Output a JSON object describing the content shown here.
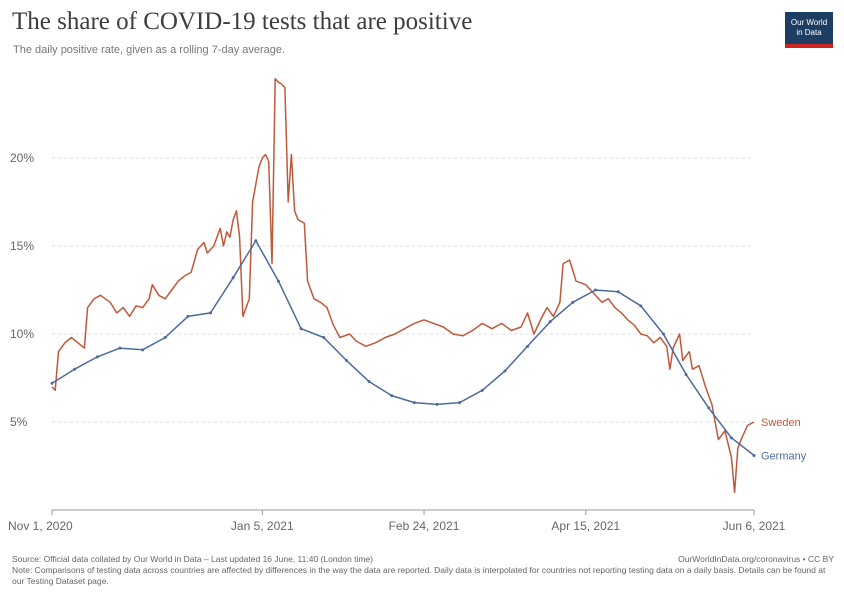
{
  "header": {
    "title": "The share of COVID-19 tests that are positive",
    "subtitle": "The daily positive rate, given as a rolling 7-day average.",
    "logo_line1": "Our World",
    "logo_line2": "in Data"
  },
  "footer": {
    "source": "Source: Official data collated by Our World in Data – Last updated 16 June, 11:40 (London time)",
    "url": "OurWorldInData.org/coronavirus • CC BY",
    "note": "Note: Comparisons of testing data across countries are affected by differences in the way the data are reported. Daily data is interpolated for countries not reporting testing data on a daily basis. Details can be found at our Testing Dataset page."
  },
  "colors": {
    "sweden": "#c0583a",
    "germany": "#4c6a9c"
  },
  "chart_data": {
    "type": "line",
    "title": "The share of COVID-19 tests that are positive",
    "subtitle": "The daily positive rate, given as a rolling 7-day average.",
    "xlabel": "",
    "ylabel": "",
    "x_ticks": [
      "Nov 1, 2020",
      "Jan 5, 2021",
      "Feb 24, 2021",
      "Apr 15, 2021",
      "Jun 6, 2021"
    ],
    "y_ticks": [
      "5%",
      "10%",
      "15%",
      "20%"
    ],
    "ylim": [
      0,
      25
    ],
    "grid": true,
    "legend": "inline-right",
    "series": [
      {
        "name": "Sweden",
        "color": "#c0583a",
        "points": [
          [
            "2020-11-01",
            7.0
          ],
          [
            "2020-11-02",
            6.8
          ],
          [
            "2020-11-03",
            9.0
          ],
          [
            "2020-11-05",
            9.5
          ],
          [
            "2020-11-07",
            9.8
          ],
          [
            "2020-11-09",
            9.5
          ],
          [
            "2020-11-11",
            9.2
          ],
          [
            "2020-11-12",
            11.5
          ],
          [
            "2020-11-14",
            12.0
          ],
          [
            "2020-11-16",
            12.2
          ],
          [
            "2020-11-19",
            11.8
          ],
          [
            "2020-11-21",
            11.2
          ],
          [
            "2020-11-23",
            11.5
          ],
          [
            "2020-11-25",
            11.0
          ],
          [
            "2020-11-27",
            11.6
          ],
          [
            "2020-11-29",
            11.5
          ],
          [
            "2020-12-01",
            12.0
          ],
          [
            "2020-12-02",
            12.8
          ],
          [
            "2020-12-04",
            12.2
          ],
          [
            "2020-12-06",
            12.0
          ],
          [
            "2020-12-08",
            12.5
          ],
          [
            "2020-12-10",
            13.0
          ],
          [
            "2020-12-12",
            13.3
          ],
          [
            "2020-12-14",
            13.5
          ],
          [
            "2020-12-16",
            14.8
          ],
          [
            "2020-12-18",
            15.2
          ],
          [
            "2020-12-19",
            14.6
          ],
          [
            "2020-12-21",
            15.0
          ],
          [
            "2020-12-23",
            16.0
          ],
          [
            "2020-12-24",
            15.0
          ],
          [
            "2020-12-25",
            15.8
          ],
          [
            "2020-12-26",
            15.5
          ],
          [
            "2020-12-27",
            16.5
          ],
          [
            "2020-12-28",
            17.0
          ],
          [
            "2020-12-29",
            15.5
          ],
          [
            "2020-12-30",
            11.0
          ],
          [
            "2020-12-31",
            11.5
          ],
          [
            "2021-01-01",
            12.0
          ],
          [
            "2021-01-02",
            17.5
          ],
          [
            "2021-01-03",
            18.5
          ],
          [
            "2021-01-04",
            19.5
          ],
          [
            "2021-01-05",
            20.0
          ],
          [
            "2021-01-06",
            20.2
          ],
          [
            "2021-01-07",
            19.8
          ],
          [
            "2021-01-08",
            14.0
          ],
          [
            "2021-01-09",
            24.5
          ],
          [
            "2021-01-10",
            24.3
          ],
          [
            "2021-01-11",
            24.2
          ],
          [
            "2021-01-12",
            24.0
          ],
          [
            "2021-01-13",
            17.5
          ],
          [
            "2021-01-14",
            20.2
          ],
          [
            "2021-01-15",
            17.0
          ],
          [
            "2021-01-16",
            16.5
          ],
          [
            "2021-01-18",
            16.3
          ],
          [
            "2021-01-19",
            13.0
          ],
          [
            "2021-01-21",
            12.0
          ],
          [
            "2021-01-23",
            11.8
          ],
          [
            "2021-01-25",
            11.5
          ],
          [
            "2021-01-27",
            10.5
          ],
          [
            "2021-01-29",
            9.8
          ],
          [
            "2021-02-01",
            10.0
          ],
          [
            "2021-02-03",
            9.6
          ],
          [
            "2021-02-06",
            9.3
          ],
          [
            "2021-02-09",
            9.5
          ],
          [
            "2021-02-12",
            9.8
          ],
          [
            "2021-02-15",
            10.0
          ],
          [
            "2021-02-18",
            10.3
          ],
          [
            "2021-02-21",
            10.6
          ],
          [
            "2021-02-24",
            10.8
          ],
          [
            "2021-02-27",
            10.6
          ],
          [
            "2021-03-02",
            10.4
          ],
          [
            "2021-03-05",
            10.0
          ],
          [
            "2021-03-08",
            9.9
          ],
          [
            "2021-03-11",
            10.2
          ],
          [
            "2021-03-14",
            10.6
          ],
          [
            "2021-03-17",
            10.3
          ],
          [
            "2021-03-20",
            10.6
          ],
          [
            "2021-03-23",
            10.2
          ],
          [
            "2021-03-26",
            10.4
          ],
          [
            "2021-03-28",
            11.2
          ],
          [
            "2021-03-30",
            10.0
          ],
          [
            "2021-04-01",
            10.8
          ],
          [
            "2021-04-03",
            11.5
          ],
          [
            "2021-04-05",
            11.0
          ],
          [
            "2021-04-07",
            11.8
          ],
          [
            "2021-04-08",
            14.0
          ],
          [
            "2021-04-10",
            14.2
          ],
          [
            "2021-04-12",
            13.0
          ],
          [
            "2021-04-15",
            12.8
          ],
          [
            "2021-04-18",
            12.2
          ],
          [
            "2021-04-20",
            11.8
          ],
          [
            "2021-04-22",
            12.0
          ],
          [
            "2021-04-24",
            11.5
          ],
          [
            "2021-04-26",
            11.2
          ],
          [
            "2021-04-28",
            10.8
          ],
          [
            "2021-04-30",
            10.5
          ],
          [
            "2021-05-02",
            10.0
          ],
          [
            "2021-05-04",
            9.9
          ],
          [
            "2021-05-06",
            9.5
          ],
          [
            "2021-05-08",
            9.8
          ],
          [
            "2021-05-10",
            9.3
          ],
          [
            "2021-05-11",
            8.0
          ],
          [
            "2021-05-12",
            9.2
          ],
          [
            "2021-05-14",
            10.0
          ],
          [
            "2021-05-15",
            8.5
          ],
          [
            "2021-05-17",
            9.0
          ],
          [
            "2021-05-18",
            8.0
          ],
          [
            "2021-05-20",
            8.2
          ],
          [
            "2021-05-22",
            7.0
          ],
          [
            "2021-05-24",
            6.0
          ],
          [
            "2021-05-26",
            4.0
          ],
          [
            "2021-05-28",
            4.5
          ],
          [
            "2021-05-30",
            3.0
          ],
          [
            "2021-05-31",
            1.0
          ],
          [
            "2021-06-01",
            3.5
          ],
          [
            "2021-06-02",
            4.0
          ],
          [
            "2021-06-04",
            4.8
          ],
          [
            "2021-06-06",
            5.0
          ]
        ]
      },
      {
        "name": "Germany",
        "color": "#4c6a9c",
        "points": [
          [
            "2020-11-01",
            7.2
          ],
          [
            "2020-11-08",
            8.0
          ],
          [
            "2020-11-15",
            8.7
          ],
          [
            "2020-11-22",
            9.2
          ],
          [
            "2020-11-29",
            9.1
          ],
          [
            "2020-12-06",
            9.8
          ],
          [
            "2020-12-13",
            11.0
          ],
          [
            "2020-12-20",
            11.2
          ],
          [
            "2020-12-27",
            13.2
          ],
          [
            "2021-01-03",
            15.3
          ],
          [
            "2021-01-10",
            13.0
          ],
          [
            "2021-01-17",
            10.3
          ],
          [
            "2021-01-24",
            9.8
          ],
          [
            "2021-01-31",
            8.5
          ],
          [
            "2021-02-07",
            7.3
          ],
          [
            "2021-02-14",
            6.5
          ],
          [
            "2021-02-21",
            6.1
          ],
          [
            "2021-02-28",
            6.0
          ],
          [
            "2021-03-07",
            6.1
          ],
          [
            "2021-03-14",
            6.8
          ],
          [
            "2021-03-21",
            7.9
          ],
          [
            "2021-03-28",
            9.3
          ],
          [
            "2021-04-04",
            10.7
          ],
          [
            "2021-04-11",
            11.8
          ],
          [
            "2021-04-18",
            12.5
          ],
          [
            "2021-04-25",
            12.4
          ],
          [
            "2021-05-02",
            11.6
          ],
          [
            "2021-05-09",
            10.0
          ],
          [
            "2021-05-16",
            7.7
          ],
          [
            "2021-05-23",
            5.8
          ],
          [
            "2021-05-30",
            4.1
          ],
          [
            "2021-06-06",
            3.1
          ]
        ]
      }
    ]
  }
}
